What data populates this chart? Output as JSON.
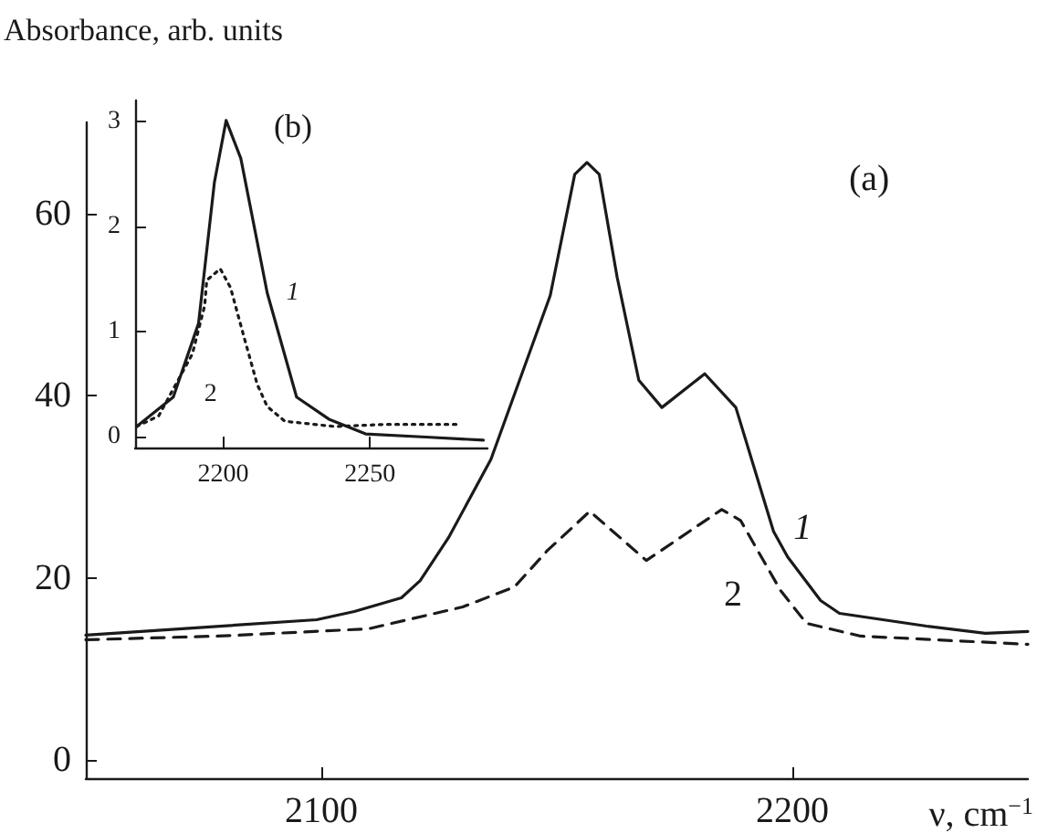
{
  "chart_data": [
    {
      "type": "line",
      "title": "(a)",
      "ylabel": "Absorbance, arb. units",
      "xlabel": "ν, cm$^{−1}$",
      "xlim": [
        2050,
        2250
      ],
      "xticks": [
        2100,
        2200
      ],
      "ylim": [
        -2,
        70
      ],
      "yticks": [
        0,
        20,
        40,
        60
      ],
      "grid": false,
      "legend": false,
      "marker": "none",
      "series": [
        {
          "name": "1",
          "color": "#1a1a1a",
          "line_style": "solid",
          "x": [
            2050,
            2099,
            2107,
            2117,
            2121,
            2127,
            2136,
            2148.6,
            2153.8,
            2156.4,
            2159,
            2162.8,
            2167.4,
            2172.3,
            2181.4,
            2188,
            2196,
            2199,
            2206,
            2210,
            2228.5,
            2241,
            2250
          ],
          "values": [
            13.7,
            15.4,
            16.3,
            17.8,
            19.7,
            24.4,
            33,
            51,
            64.3,
            65.6,
            64.3,
            53,
            41.7,
            38.7,
            42.4,
            38.7,
            25.1,
            22.3,
            17.5,
            16.1,
            14.7,
            13.9,
            14.1
          ]
        },
        {
          "name": "2",
          "color": "#1a1a1a",
          "line_style": "dashed",
          "x": [
            2050,
            2078,
            2110,
            2130,
            2141,
            2148,
            2157,
            2169,
            2185,
            2189,
            2197.5,
            2203,
            2214.5,
            2250
          ],
          "values": [
            13.2,
            13.6,
            14.4,
            16.8,
            19,
            23,
            27.3,
            21.9,
            27.5,
            26.3,
            18.6,
            15,
            13.6,
            12.7
          ]
        }
      ]
    },
    {
      "type": "line",
      "title": "(b)",
      "xlim": [
        2170,
        2290
      ],
      "xticks": [
        2200,
        2250
      ],
      "ylim": [
        -0.1,
        3.2
      ],
      "yticks": [
        0,
        1,
        2,
        3
      ],
      "grid": false,
      "legend": false,
      "marker": "none",
      "series": [
        {
          "name": "1",
          "color": "#1a1a1a",
          "line_style": "solid",
          "x": [
            2170.5,
            2183,
            2191.6,
            2197,
            2201,
            2206,
            2215,
            2225,
            2236,
            2248.5,
            2269,
            2288.6
          ],
          "values": [
            0.1,
            0.38,
            1.08,
            2.42,
            3.01,
            2.65,
            1.37,
            0.38,
            0.17,
            0.03,
            0,
            -0.03
          ]
        },
        {
          "name": "2",
          "color": "#1a1a1a",
          "line_style": "dotted",
          "x": [
            2170.5,
            2178,
            2189.5,
            2193.7,
            2194.4,
            2199,
            2202.5,
            2207,
            2211.6,
            2215,
            2221,
            2238,
            2255,
            2280
          ],
          "values": [
            0.1,
            0.2,
            0.79,
            1.25,
            1.49,
            1.6,
            1.42,
            0.96,
            0.5,
            0.29,
            0.15,
            0.1,
            0.12,
            0.12
          ]
        }
      ]
    }
  ]
}
